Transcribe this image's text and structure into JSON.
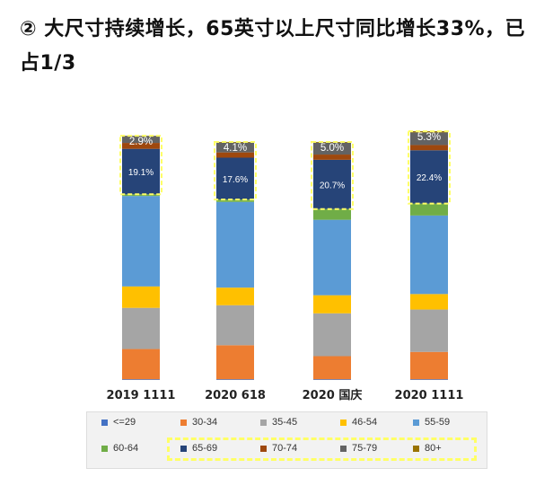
{
  "title": "② 大尺寸持续增长，65英寸以上尺寸同比增长33%，已占1/3",
  "colors": {
    "<=29": "#4472c4",
    "30-34": "#ed7d31",
    "35-45": "#a5a5a5",
    "46-54": "#ffc000",
    "55-59": "#5b9bd5",
    "60-64": "#70ad47",
    "65-69": "#264478",
    "70-74": "#9e480e",
    "75-79": "#636363",
    "80+": "#997300"
  },
  "highlight_color": "#ffff66",
  "chart_data": {
    "type": "bar",
    "stacked": true,
    "ylim": [
      0,
      100
    ],
    "grid": false,
    "legend_position": "bottom",
    "categories": [
      "2019 1111",
      "2020 618",
      "2020 国庆",
      "2020 1111"
    ],
    "series": [
      {
        "name": "<=29",
        "values": [
          0.3,
          0.3,
          0.3,
          0.3
        ]
      },
      {
        "name": "30-34",
        "values": [
          12.7,
          14.3,
          9.7,
          11.5
        ]
      },
      {
        "name": "35-45",
        "values": [
          17.3,
          16.8,
          18.0,
          17.8
        ]
      },
      {
        "name": "46-54",
        "values": [
          9.0,
          7.4,
          7.6,
          6.5
        ]
      },
      {
        "name": "55-59",
        "values": [
          38.0,
          36.0,
          31.7,
          33.0
        ]
      },
      {
        "name": "60-64",
        "values": [
          0.7,
          1.0,
          4.5,
          5.0
        ]
      },
      {
        "name": "65-69",
        "values": [
          19.1,
          17.6,
          20.7,
          22.4
        ]
      },
      {
        "name": "70-74",
        "values": [
          2.5,
          2.2,
          2.2,
          2.2
        ]
      },
      {
        "name": "75-79",
        "values": [
          2.9,
          4.1,
          5.0,
          5.3
        ]
      },
      {
        "name": "80+",
        "values": [
          0.1,
          0.3,
          0.3,
          0.5
        ]
      }
    ],
    "data_labels": {
      "65-69": [
        "19.1%",
        "17.6%",
        "20.7%",
        "22.4%"
      ],
      "75-79": [
        "2.9%",
        "4.1%",
        "5.0%",
        "5.3%"
      ]
    }
  },
  "legend_rows": [
    [
      "<=29",
      "30-34",
      "35-45",
      "46-54",
      "55-59"
    ],
    [
      "60-64",
      "65-69",
      "70-74",
      "75-79",
      "80+"
    ]
  ]
}
